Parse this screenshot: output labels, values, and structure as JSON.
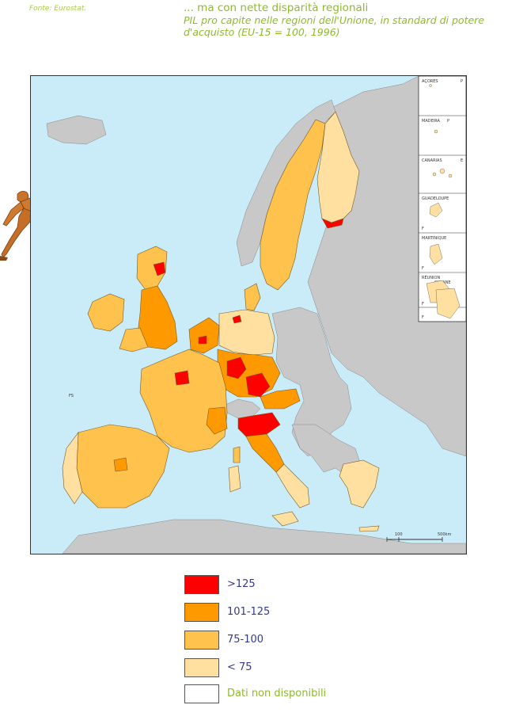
{
  "source": {
    "label": "Fonte:",
    "text": "Eurostat."
  },
  "title": {
    "main": "... ma con nette disparità regionali",
    "subtitle": "PIL pro capite nelle regioni dell'Unione, in standard di potere d'acquisto (EU-15 = 100, 1996)"
  },
  "map": {
    "colors": {
      "sea": "#c9ecf8",
      "non_eu": "#c8c8c8",
      "gt125": "#ff0000",
      "r101_125": "#ff9900",
      "r75_100": "#ffc34d",
      "lt75": "#ffe0a0",
      "na": "#ffffff"
    },
    "insets": [
      "AÇORES",
      "MADEIRA",
      "CANARIAS",
      "GUADELOUPE",
      "MARTINIQUE",
      "RÉUNION",
      "GUYANE"
    ],
    "inset_codes": [
      "P",
      "P",
      "E",
      "F",
      "F",
      "F",
      "F"
    ],
    "fs_label": "FS",
    "scale": {
      "mid": "100",
      "end": "500km"
    }
  },
  "legend": [
    {
      "label": ">125",
      "color": "#ff0000",
      "green": false
    },
    {
      "label": "101-125",
      "color": "#ff9900",
      "green": false
    },
    {
      "label": "75-100",
      "color": "#ffc34d",
      "green": false
    },
    {
      "label": "< 75",
      "color": "#ffe0a0",
      "green": false
    },
    {
      "label": "Dati non disponibili",
      "color": "#ffffff",
      "green": true
    }
  ]
}
